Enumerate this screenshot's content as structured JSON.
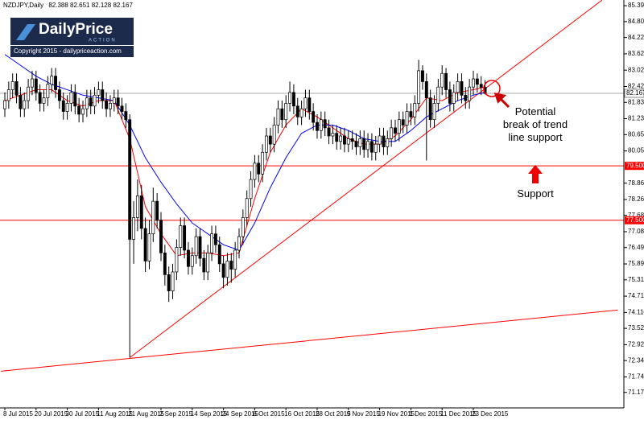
{
  "symbol": "NZDJPY,Daily",
  "logo": {
    "brand": "DailyPrice",
    "tagline": "ACTION",
    "copyright": "Copyright 2015 - dailypriceaction.com"
  },
  "chart_data": {
    "type": "candlestick",
    "categories": [
      "8 Jul 2015",
      null,
      null,
      null,
      null,
      null,
      null,
      null,
      "20 Jul 2015",
      null,
      null,
      null,
      null,
      null,
      null,
      null,
      "30 Jul 2015",
      null,
      null,
      null,
      null,
      null,
      null,
      null,
      "11 Aug 2015",
      null,
      null,
      null,
      null,
      null,
      null,
      null,
      "21 Aug 2015",
      null,
      null,
      null,
      null,
      null,
      null,
      null,
      "2 Sep 2015",
      null,
      null,
      null,
      null,
      null,
      null,
      null,
      "14 Sep 2015",
      null,
      null,
      null,
      null,
      null,
      null,
      null,
      "24 Sep 2015",
      null,
      null,
      null,
      null,
      null,
      null,
      null,
      "6 Oct 2015",
      null,
      null,
      null,
      null,
      null,
      null,
      null,
      "16 Oct 2015",
      null,
      null,
      null,
      null,
      null,
      null,
      null,
      "28 Oct 2015",
      null,
      null,
      null,
      null,
      null,
      null,
      null,
      "9 Nov 2015",
      null,
      null,
      null,
      null,
      null,
      null,
      null,
      "19 Nov 2015",
      null,
      null,
      null,
      null,
      null,
      null,
      null,
      "1 Dec 2015",
      null,
      null,
      null,
      null,
      null,
      null,
      null,
      "11 Dec 2015",
      null,
      null,
      null,
      null,
      null,
      null,
      null,
      "23 Dec 2015",
      null,
      null,
      null
    ],
    "open": [
      81.6,
      81.9,
      82.3,
      82.6,
      82.1,
      81.6,
      81.9,
      82.4,
      82.7,
      82.2,
      81.8,
      82.0,
      82.5,
      82.8,
      82.3,
      81.9,
      81.5,
      81.8,
      82.2,
      81.7,
      81.4,
      81.6,
      82.0,
      81.7,
      82.1,
      82.3,
      81.9,
      81.6,
      81.8,
      82.0,
      81.7,
      81.5,
      81.2,
      76.8,
      77.6,
      78.4,
      77.2,
      76.0,
      77.0,
      78.2,
      77.5,
      76.3,
      75.5,
      74.9,
      75.6,
      76.5,
      77.3,
      76.4,
      75.8,
      76.2,
      76.9,
      76.1,
      75.6,
      76.3,
      77.0,
      76.6,
      75.9,
      75.4,
      76.0,
      75.7,
      76.4,
      76.9,
      77.6,
      78.3,
      79.0,
      79.6,
      79.2,
      80.0,
      80.6,
      80.3,
      81.0,
      81.6,
      81.2,
      81.8,
      82.2,
      81.7,
      81.3,
      81.6,
      82.0,
      81.5,
      81.1,
      80.8,
      81.2,
      80.9,
      80.6,
      80.7,
      80.4,
      80.6,
      80.3,
      80.5,
      80.4,
      80.2,
      80.5,
      80.1,
      80.4,
      80.0,
      80.3,
      80.6,
      80.2,
      80.5,
      80.9,
      80.7,
      81.2,
      81.0,
      81.5,
      81.3,
      81.8,
      83.0,
      82.6,
      82.0,
      81.2,
      81.8,
      82.4,
      82.9,
      82.3,
      81.8,
      82.2,
      82.6,
      82.1,
      81.9,
      82.4,
      82.7,
      82.5,
      82.388
    ],
    "high": [
      82.2,
      82.6,
      82.9,
      82.9,
      82.4,
      82.2,
      82.7,
      83.0,
      83.0,
      82.5,
      82.3,
      82.8,
      83.1,
      83.1,
      82.6,
      82.2,
      82.1,
      82.5,
      82.5,
      82.0,
      81.9,
      82.3,
      82.3,
      82.4,
      82.6,
      82.6,
      82.2,
      82.1,
      82.3,
      82.3,
      82.0,
      81.8,
      81.4,
      78.2,
      79.0,
      78.8,
      77.6,
      77.5,
      78.7,
      78.5,
      77.8,
      76.6,
      75.8,
      75.9,
      76.8,
      77.6,
      77.6,
      76.7,
      76.5,
      77.2,
      77.2,
      76.4,
      76.6,
      77.3,
      77.3,
      76.9,
      76.2,
      76.3,
      76.3,
      76.7,
      77.2,
      77.9,
      78.6,
      79.3,
      79.9,
      79.9,
      80.3,
      80.9,
      80.9,
      81.3,
      81.9,
      81.9,
      82.1,
      82.6,
      82.5,
      82.0,
      81.9,
      82.3,
      82.3,
      81.8,
      81.4,
      81.5,
      81.5,
      81.2,
      81.0,
      81.0,
      80.9,
      80.9,
      80.8,
      80.8,
      80.7,
      80.8,
      80.8,
      80.7,
      80.7,
      80.6,
      80.9,
      80.9,
      80.8,
      81.2,
      81.2,
      81.5,
      81.5,
      81.8,
      81.8,
      82.1,
      83.4,
      83.2,
      82.9,
      82.3,
      82.1,
      82.7,
      83.2,
      83.1,
      82.6,
      82.5,
      82.9,
      82.9,
      82.4,
      82.7,
      83.0,
      82.9,
      82.8,
      82.651
    ],
    "low": [
      81.3,
      81.6,
      82.0,
      81.8,
      81.3,
      81.3,
      81.6,
      82.1,
      81.9,
      81.5,
      81.5,
      81.7,
      82.2,
      82.0,
      81.6,
      81.2,
      81.2,
      81.5,
      81.4,
      81.1,
      81.1,
      81.3,
      81.4,
      81.4,
      81.8,
      81.6,
      81.3,
      81.3,
      81.5,
      81.4,
      81.2,
      80.9,
      72.45,
      75.9,
      77.1,
      76.8,
      75.6,
      75.7,
      76.7,
      77.2,
      76.0,
      75.1,
      74.5,
      74.6,
      75.3,
      76.2,
      76.1,
      75.5,
      75.5,
      75.9,
      75.8,
      75.3,
      75.3,
      76.0,
      76.3,
      75.6,
      75.0,
      75.1,
      75.2,
      75.4,
      76.1,
      76.6,
      77.3,
      78.0,
      78.7,
      78.9,
      78.9,
      79.7,
      80.0,
      80.0,
      80.7,
      80.9,
      80.9,
      81.5,
      81.4,
      81.0,
      81.0,
      81.3,
      81.2,
      80.8,
      80.5,
      80.5,
      80.6,
      80.3,
      80.3,
      80.1,
      80.1,
      80.0,
      80.0,
      80.1,
      79.9,
      79.9,
      79.8,
      79.8,
      79.7,
      79.7,
      80.0,
      79.9,
      79.9,
      80.2,
      80.4,
      80.4,
      80.7,
      80.7,
      81.0,
      81.0,
      81.5,
      82.3,
      79.7,
      80.9,
      80.9,
      81.5,
      82.1,
      82.0,
      81.5,
      81.5,
      81.9,
      81.8,
      81.6,
      81.6,
      82.1,
      82.2,
      82.1,
      82.128
    ],
    "close": [
      81.9,
      82.3,
      82.6,
      82.1,
      81.6,
      81.9,
      82.4,
      82.7,
      82.2,
      81.8,
      82.0,
      82.5,
      82.8,
      82.3,
      81.9,
      81.5,
      81.8,
      82.2,
      81.7,
      81.4,
      81.6,
      82.0,
      81.7,
      82.1,
      82.3,
      81.9,
      81.6,
      81.8,
      82.0,
      81.7,
      81.5,
      81.2,
      76.8,
      77.6,
      78.4,
      77.2,
      76.0,
      77.0,
      78.2,
      77.5,
      76.3,
      75.5,
      74.9,
      75.6,
      76.5,
      77.3,
      76.4,
      75.8,
      76.2,
      76.9,
      76.1,
      75.6,
      76.3,
      77.0,
      76.6,
      75.9,
      75.4,
      76.0,
      75.7,
      76.4,
      76.9,
      77.6,
      78.3,
      79.0,
      79.6,
      79.2,
      80.0,
      80.6,
      80.3,
      81.0,
      81.6,
      81.2,
      81.8,
      82.2,
      81.7,
      81.3,
      81.6,
      82.0,
      81.5,
      81.1,
      80.8,
      81.2,
      80.9,
      80.6,
      80.7,
      80.4,
      80.6,
      80.3,
      80.5,
      80.4,
      80.2,
      80.5,
      80.1,
      80.4,
      80.0,
      80.3,
      80.6,
      80.2,
      80.5,
      80.9,
      80.7,
      81.2,
      81.0,
      81.5,
      81.3,
      81.8,
      83.0,
      82.6,
      82.0,
      81.2,
      81.8,
      82.4,
      82.9,
      82.3,
      81.8,
      82.2,
      82.6,
      82.1,
      81.9,
      82.4,
      82.7,
      82.5,
      82.39,
      82.167
    ],
    "up_color": "#ffffff",
    "down_color": "#000000",
    "ylim": [
      70.6,
      85.6
    ],
    "yticks": [
      {
        "value": 85.39,
        "label": "85.390"
      },
      {
        "value": 84.805,
        "label": "84.805"
      },
      {
        "value": 84.22,
        "label": "84.220"
      },
      {
        "value": 83.62,
        "label": "83.620"
      },
      {
        "value": 83.02,
        "label": "83.020"
      },
      {
        "value": 82.42,
        "label": "82.420"
      },
      {
        "value": 81.835,
        "label": "81.835"
      },
      {
        "value": 81.235,
        "label": "81.235"
      },
      {
        "value": 80.65,
        "label": "80.650"
      },
      {
        "value": 80.05,
        "label": "80.050"
      },
      {
        "value": 78.865,
        "label": "78.865"
      },
      {
        "value": 78.265,
        "label": "78.265"
      },
      {
        "value": 77.68,
        "label": "77.680"
      },
      {
        "value": 77.08,
        "label": "77.080"
      },
      {
        "value": 76.495,
        "label": "76.495"
      },
      {
        "value": 75.895,
        "label": "75.895"
      },
      {
        "value": 75.31,
        "label": "75.310"
      },
      {
        "value": 74.71,
        "label": "74.710"
      },
      {
        "value": 74.11,
        "label": "74.110"
      },
      {
        "value": 73.525,
        "label": "73.525"
      },
      {
        "value": 72.925,
        "label": "72.925"
      },
      {
        "value": 72.34,
        "label": "72.340"
      },
      {
        "value": 71.74,
        "label": "71.740"
      },
      {
        "value": 71.17,
        "label": "71.170"
      }
    ],
    "hlines": [
      {
        "value": 79.5,
        "label": "79.500",
        "color": "#ff0000"
      },
      {
        "value": 77.5,
        "label": "77.500",
        "color": "#ff0000"
      }
    ],
    "trendlines": [
      {
        "x": [
          32,
          153
        ],
        "y": [
          72.45,
          85.6
        ],
        "color": "#ff0000"
      },
      {
        "x": [
          -1,
          157
        ],
        "y": [
          71.95,
          74.2
        ],
        "color": "#ff0000"
      }
    ],
    "moving_averages": {
      "x": [
        0,
        4,
        8,
        12,
        16,
        20,
        24,
        28,
        32,
        36,
        40,
        44,
        48,
        52,
        56,
        60,
        64,
        68,
        72,
        76,
        80,
        84,
        88,
        92,
        96,
        100,
        104,
        108,
        112,
        116,
        120,
        123
      ],
      "series": [
        {
          "color": "#ff0000",
          "values": [
            81.9,
            82.1,
            82.3,
            82.3,
            81.9,
            81.7,
            81.9,
            81.9,
            80.5,
            78.0,
            77.0,
            76.2,
            76.3,
            76.3,
            76.2,
            76.3,
            78.3,
            80.0,
            81.0,
            81.6,
            81.3,
            80.9,
            80.5,
            80.3,
            80.3,
            80.6,
            81.2,
            82.0,
            81.9,
            82.2,
            82.3,
            82.4
          ]
        },
        {
          "color": "#0000ff",
          "values": [
            83.6,
            83.2,
            82.8,
            82.5,
            82.3,
            82.1,
            82.0,
            81.9,
            81.0,
            79.8,
            78.9,
            78.1,
            77.4,
            77.0,
            76.6,
            76.4,
            77.4,
            78.7,
            79.8,
            80.7,
            81.0,
            81.0,
            80.8,
            80.5,
            80.4,
            80.4,
            80.8,
            81.3,
            81.6,
            81.9,
            82.1,
            82.2
          ]
        }
      ]
    },
    "annotations": [
      {
        "lines": [
          "Potential",
          "break of trend",
          "line support"
        ]
      },
      {
        "lines": [
          "Support"
        ]
      }
    ]
  }
}
